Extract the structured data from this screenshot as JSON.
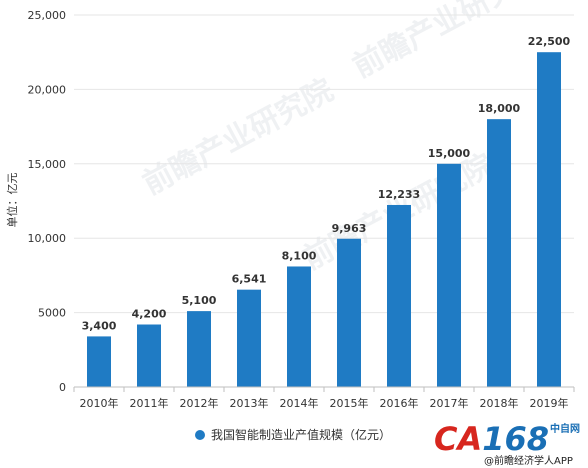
{
  "chart_data": {
    "type": "bar",
    "categories": [
      "2010年",
      "2011年",
      "2012年",
      "2013年",
      "2014年",
      "2015年",
      "2016年",
      "2017年",
      "2018年",
      "2019年"
    ],
    "series": [
      {
        "name": "我国智能制造业产值规模（亿元）",
        "values": [
          3400,
          4200,
          5100,
          6541,
          8100,
          9963,
          12233,
          15000,
          18000,
          22500
        ],
        "value_labels": [
          "3,400",
          "4,200",
          "5,100",
          "6,541",
          "8,100",
          "9,963",
          "12,233",
          "15,000",
          "18,000",
          "22,500"
        ],
        "color": "#1f7bc4"
      }
    ],
    "ylabel": "单位：亿元",
    "ylim": [
      0,
      25000
    ],
    "yticks": [
      0,
      5000,
      10000,
      15000,
      20000,
      25000
    ],
    "ytick_labels": [
      "0",
      "5000",
      "10,000",
      "15,000",
      "20,000",
      "25,000"
    ],
    "grid": true,
    "legend_position": "bottom"
  },
  "watermark": {
    "text": "前瞻产业研究院"
  },
  "logo": {
    "main": "CA168",
    "tag": "中自网",
    "sub": "@前瞻经济学人APP"
  },
  "colors": {
    "bar": "#1f7bc4",
    "grid": "#e6e6e6",
    "axis": "#bfbfbf",
    "logo_red": "#d7261e",
    "logo_blue": "#1a6fb5"
  }
}
